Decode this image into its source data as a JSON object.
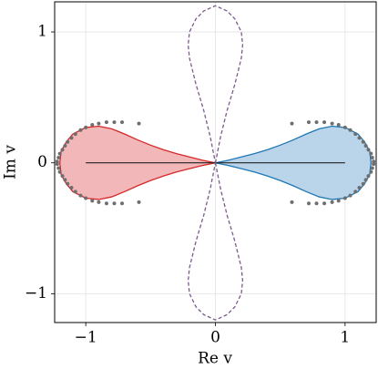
{
  "chart_data": {
    "type": "line",
    "xlabel": "Re v",
    "ylabel": "Im v",
    "xlim": [
      -1.24,
      1.24
    ],
    "ylim": [
      -1.22,
      1.23
    ],
    "xticks": [
      {
        "value": -1,
        "label": "−1"
      },
      0,
      1
    ],
    "yticks": [
      {
        "value": -1,
        "label": "−1"
      },
      0,
      1
    ],
    "grid": true,
    "series": [
      {
        "type": "area",
        "color": "#d62728",
        "fill": "#f2b8b9",
        "x": [
          0,
          -0.1,
          -0.2,
          -0.3,
          -0.4,
          -0.5,
          -0.6,
          -0.7,
          -0.8,
          -0.9,
          -1.0,
          -1.1,
          -1.15,
          -1.19,
          -1.2,
          -1.19,
          -1.15,
          -1.1,
          -1.0,
          -0.9,
          -0.8,
          -0.7,
          -0.6,
          -0.5,
          -0.4,
          -0.3,
          -0.2,
          -0.1,
          0
        ],
        "values": [
          0,
          0.02,
          0.045,
          0.07,
          0.1,
          0.135,
          0.175,
          0.22,
          0.26,
          0.28,
          0.27,
          0.22,
          0.16,
          0.09,
          0,
          -0.09,
          -0.16,
          -0.22,
          -0.27,
          -0.28,
          -0.26,
          -0.22,
          -0.175,
          -0.135,
          -0.1,
          -0.07,
          -0.045,
          -0.02,
          0
        ]
      },
      {
        "type": "area",
        "color": "#1f77b4",
        "fill": "#bad4ea",
        "x": [
          0,
          0.1,
          0.2,
          0.3,
          0.4,
          0.5,
          0.6,
          0.7,
          0.8,
          0.9,
          1.0,
          1.1,
          1.15,
          1.19,
          1.2,
          1.19,
          1.15,
          1.1,
          1.0,
          0.9,
          0.8,
          0.7,
          0.6,
          0.5,
          0.4,
          0.3,
          0.2,
          0.1,
          0
        ],
        "values": [
          0,
          0.02,
          0.045,
          0.07,
          0.1,
          0.135,
          0.175,
          0.22,
          0.26,
          0.28,
          0.27,
          0.22,
          0.16,
          0.09,
          0,
          -0.09,
          -0.16,
          -0.22,
          -0.27,
          -0.28,
          -0.26,
          -0.22,
          -0.175,
          -0.135,
          -0.1,
          -0.07,
          -0.045,
          -0.02,
          0
        ]
      },
      {
        "type": "line",
        "color": "#222222",
        "x": [
          -1,
          1
        ],
        "values": [
          0,
          0
        ]
      },
      {
        "type": "dashed",
        "color": "#7b5a8e",
        "x": [
          0,
          0.04,
          0.09,
          0.15,
          0.2,
          0.21,
          0.2,
          0.15,
          0.09,
          0,
          -0.09,
          -0.15,
          -0.2,
          -0.21,
          -0.2,
          -0.15,
          -0.09,
          -0.04,
          0
        ],
        "values": [
          0,
          0.2,
          0.4,
          0.6,
          0.8,
          0.9,
          1.0,
          1.1,
          1.16,
          1.2,
          1.16,
          1.1,
          1.0,
          0.9,
          0.8,
          0.6,
          0.4,
          0.2,
          0
        ]
      },
      {
        "type": "dashed",
        "color": "#7b5a8e",
        "x": [
          0,
          0.04,
          0.09,
          0.15,
          0.2,
          0.21,
          0.2,
          0.15,
          0.09,
          0,
          -0.09,
          -0.15,
          -0.2,
          -0.21,
          -0.2,
          -0.15,
          -0.09,
          -0.04,
          0
        ],
        "values": [
          0,
          -0.2,
          -0.4,
          -0.6,
          -0.8,
          -0.9,
          -1.0,
          -1.1,
          -1.16,
          -1.2,
          -1.16,
          -1.1,
          -1.0,
          -0.9,
          -0.8,
          -0.6,
          -0.4,
          -0.2,
          0
        ]
      },
      {
        "type": "scatter",
        "color": "#6e6e6e",
        "x": [
          0.59,
          0.72,
          0.78,
          0.84,
          0.9,
          0.95,
          1.0,
          1.04,
          1.08,
          1.11,
          1.14,
          1.16,
          1.18,
          1.2,
          1.21,
          1.22,
          0.59,
          0.72,
          0.78,
          0.84,
          0.9,
          0.95,
          1.0,
          1.04,
          1.08,
          1.11,
          1.14,
          1.16,
          1.18,
          1.2,
          1.21,
          1.22,
          -0.59,
          -0.72,
          -0.78,
          -0.84,
          -0.9,
          -0.95,
          -1.0,
          -1.04,
          -1.08,
          -1.11,
          -1.14,
          -1.16,
          -1.18,
          -1.2,
          -1.21,
          -1.22,
          -0.59,
          -0.72,
          -0.78,
          -0.84,
          -0.9,
          -0.95,
          -1.0,
          -1.04,
          -1.08,
          -1.11,
          -1.14,
          -1.16,
          -1.18,
          -1.2,
          -1.21,
          -1.22
        ],
        "values": [
          0.3,
          0.31,
          0.31,
          0.31,
          0.3,
          0.29,
          0.27,
          0.25,
          0.22,
          0.19,
          0.16,
          0.13,
          0.1,
          0.07,
          0.04,
          0.01,
          -0.3,
          -0.31,
          -0.31,
          -0.31,
          -0.3,
          -0.29,
          -0.27,
          -0.25,
          -0.22,
          -0.19,
          -0.16,
          -0.13,
          -0.1,
          -0.07,
          -0.04,
          -0.01,
          0.3,
          0.31,
          0.31,
          0.31,
          0.3,
          0.29,
          0.27,
          0.25,
          0.22,
          0.19,
          0.16,
          0.13,
          0.1,
          0.07,
          0.04,
          0.01,
          -0.3,
          -0.31,
          -0.31,
          -0.31,
          -0.3,
          -0.29,
          -0.27,
          -0.25,
          -0.22,
          -0.19,
          -0.16,
          -0.13,
          -0.1,
          -0.07,
          -0.04,
          -0.01
        ]
      }
    ]
  }
}
